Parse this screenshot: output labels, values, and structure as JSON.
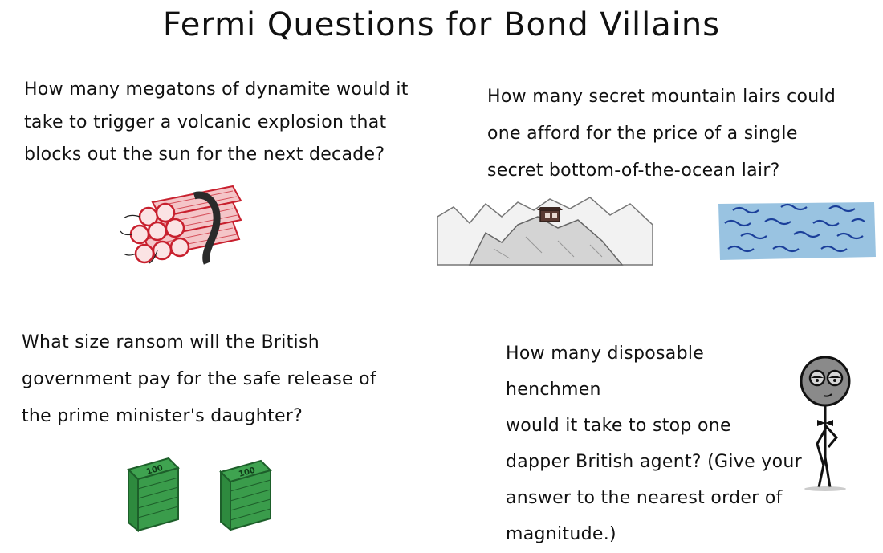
{
  "title": "Fermi Questions for Bond Villains",
  "questions": [
    {
      "text": "How many megatons of dynamite would it\ntake to trigger a volcanic explosion that\nblocks out the sun for the next decade?"
    },
    {
      "text": "How many secret mountain lairs could\none afford for the price of a single\nsecret bottom-of-the-ocean lair?"
    },
    {
      "text": "What size ransom will the British\ngovernment pay for the safe release of\nthe prime minister's daughter?"
    },
    {
      "text": "How many disposable henchmen\nwould it take to stop one\ndapper British agent? (Give your\nanswer to the nearest order of\nmagnitude.)"
    }
  ],
  "money_labels": [
    "100",
    "100"
  ],
  "colors": {
    "dynamite": "#c8202e",
    "dynamite_band": "#2a2a2a",
    "mountain": "#9a9a9a",
    "lair": "#5a3a32",
    "ocean": "#4a8fc2",
    "ocean_waves": "#1b3f9a",
    "money": "#2e8a3e",
    "villain_head": "#8a8a8a"
  },
  "icons": [
    "dynamite-bundle-icon",
    "mountain-lair-icon",
    "ocean-icon",
    "money-stack-icon",
    "villain-stick-figure-icon"
  ]
}
